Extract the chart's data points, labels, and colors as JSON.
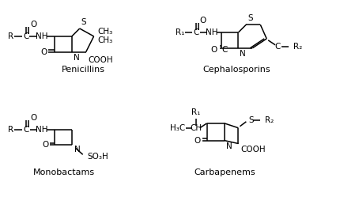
{
  "background_color": "#ffffff",
  "line_color": "#000000",
  "lw": 1.1,
  "fs": 7.5,
  "fig_width": 4.3,
  "fig_height": 2.68,
  "dpi": 100,
  "labels": {
    "penicillins": "Penicillins",
    "cephalosporins": "Cephalosporins",
    "monobactams": "Monobactams",
    "carbapenems": "Carbapenems"
  }
}
